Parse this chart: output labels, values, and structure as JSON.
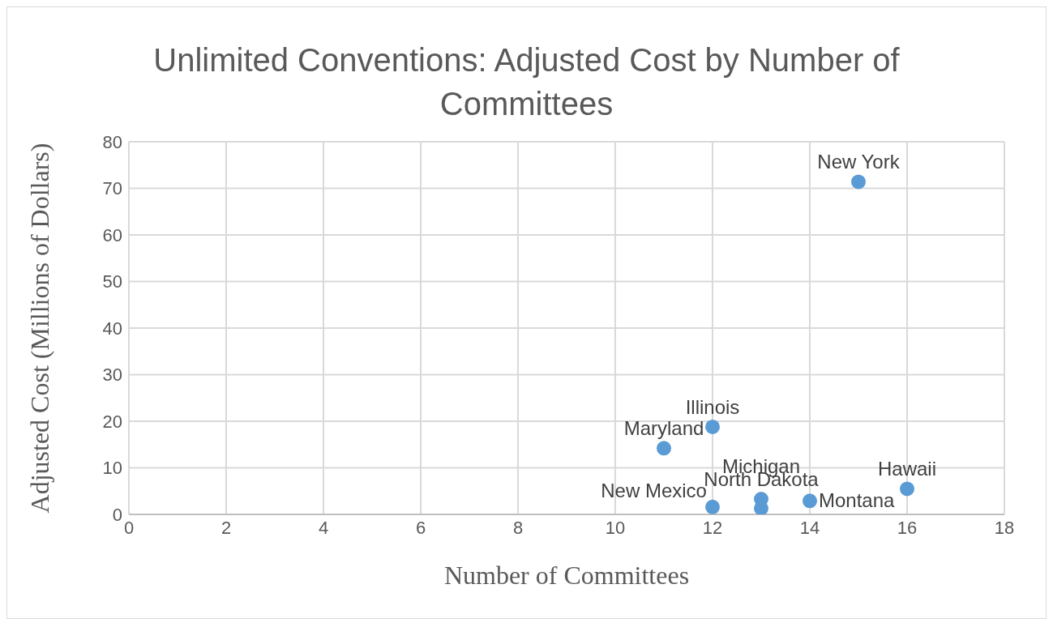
{
  "chart_data": {
    "type": "scatter",
    "title": "Unlimited Conventions: Adjusted Cost by Number of Committees",
    "xlabel": "Number of Committees",
    "ylabel": "Adjusted Cost (Millions of Dollars)",
    "x": [
      15,
      12,
      11,
      16,
      13,
      13,
      12,
      14
    ],
    "values": [
      71.4,
      18.8,
      14.2,
      5.5,
      3.3,
      1.3,
      1.6,
      2.9
    ],
    "color": "#5b9bd5",
    "marker": "circle",
    "xlim": [
      0,
      18
    ],
    "xticks": [
      0,
      2,
      4,
      6,
      8,
      10,
      12,
      14,
      16,
      18
    ],
    "ylim": [
      0,
      80
    ],
    "yticks": [
      0,
      10,
      20,
      30,
      40,
      50,
      60,
      70,
      80
    ],
    "grid": true,
    "annotations": [
      {
        "text": "New York",
        "x": 15,
        "y": 71.4
      },
      {
        "text": "Illinois",
        "x": 12,
        "y": 18.8
      },
      {
        "text": "Maryland",
        "x": 11,
        "y": 14.2
      },
      {
        "text": "Hawaii",
        "x": 16,
        "y": 5.5
      },
      {
        "text": "New Mexico",
        "x": 12,
        "y": 1.6
      },
      {
        "text": "Michigan",
        "x": 13,
        "y": 1.3
      },
      {
        "text": "North Dakota",
        "x": 13,
        "y": 3.3
      },
      {
        "text": "Montana",
        "x": 14,
        "y": 2.9
      }
    ]
  }
}
